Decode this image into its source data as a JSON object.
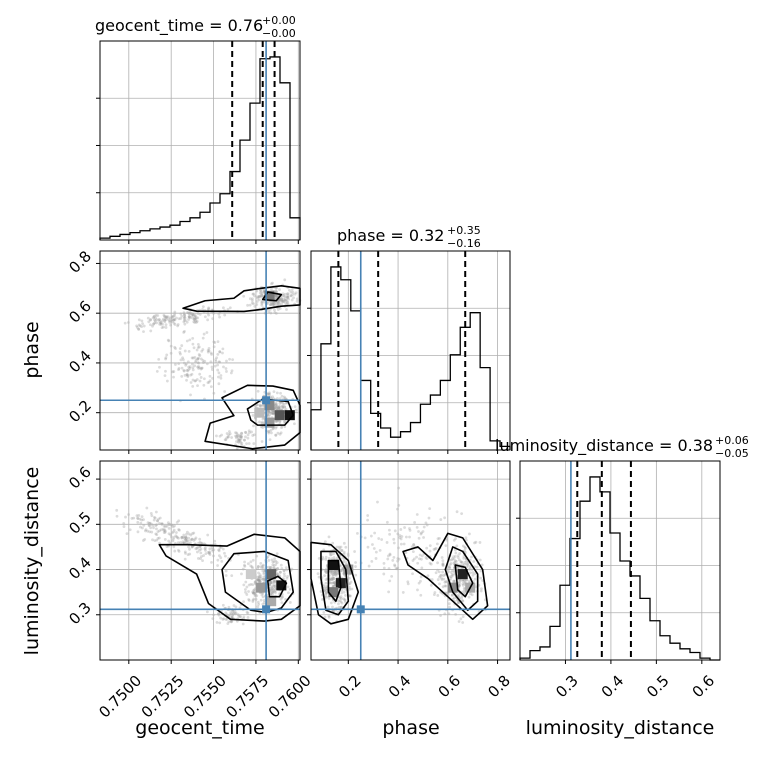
{
  "colors": {
    "truth": "#4682b4",
    "line": "#000000",
    "grid": "#b0b0b0",
    "scatter": "#9a9a9a"
  },
  "chart_data": {
    "type": "corner",
    "parameters": [
      "geocent_time",
      "phase",
      "luminosity_distance"
    ],
    "axis_labels": {
      "x": [
        "geocent_time",
        "phase",
        "luminosity_distance"
      ],
      "y": [
        "phase",
        "luminosity_distance"
      ]
    },
    "ranges": {
      "geocent_time": [
        0.7483,
        0.7601
      ],
      "phase": [
        0.05,
        0.85
      ],
      "luminosity_distance": [
        0.2,
        0.64
      ]
    },
    "ticks": {
      "geocent_time": {
        "values": [
          0.75,
          0.7525,
          0.755,
          0.7575,
          0.76
        ],
        "labels": [
          "0.7500",
          "0.7525",
          "0.7550",
          "0.7575",
          "0.7600"
        ]
      },
      "phase": {
        "values": [
          0.2,
          0.4,
          0.6,
          0.8
        ],
        "labels": [
          "0.2",
          "0.4",
          "0.6",
          "0.8"
        ]
      },
      "luminosity_distance": {
        "values": [
          0.3,
          0.4,
          0.5,
          0.6
        ],
        "labels": [
          "0.3",
          "0.4",
          "0.5",
          "0.6"
        ]
      }
    },
    "truths": {
      "geocent_time": 0.7581,
      "phase": 0.25,
      "luminosity_distance": 0.312
    },
    "titles": [
      {
        "param": "geocent_time",
        "main": "geocent_time = 0.76",
        "sup": "+0.00",
        "sub": "−0.00"
      },
      {
        "param": "phase",
        "main": "phase = 0.32",
        "sup": "+0.35",
        "sub": "−0.16"
      },
      {
        "param": "luminosity_distance",
        "main": "luminosity_distance = 0.38",
        "sup": "+0.06",
        "sub": "−0.05"
      }
    ],
    "quantiles": {
      "geocent_time": [
        0.7561,
        0.7579,
        0.7586
      ],
      "phase": [
        0.16,
        0.32,
        0.67
      ],
      "luminosity_distance": [
        0.326,
        0.38,
        0.444
      ]
    },
    "histograms": {
      "geocent_time": {
        "edges": [
          0.7483,
          0.74889,
          0.74948,
          0.75007,
          0.75066,
          0.75125,
          0.75184,
          0.75243,
          0.75302,
          0.75361,
          0.7542,
          0.75479,
          0.75538,
          0.75597,
          0.75656,
          0.75715,
          0.75774,
          0.75833,
          0.75892,
          0.75951,
          0.7601
        ],
        "counts": [
          1,
          2,
          3,
          4,
          5,
          6,
          7,
          8,
          10,
          12,
          15,
          20,
          25,
          37,
          54,
          74,
          98,
          99,
          85,
          12
        ]
      },
      "phase": {
        "edges": [
          0.05,
          0.09,
          0.13,
          0.17,
          0.21,
          0.25,
          0.29,
          0.33,
          0.37,
          0.41,
          0.45,
          0.49,
          0.53,
          0.57,
          0.61,
          0.65,
          0.69,
          0.73,
          0.77,
          0.81,
          0.85
        ],
        "counts": [
          22,
          58,
          100,
          93,
          76,
          38,
          20,
          12,
          7,
          10,
          15,
          25,
          30,
          38,
          52,
          67,
          75,
          45,
          5,
          2
        ]
      },
      "luminosity_distance": {
        "edges": [
          0.2,
          0.222,
          0.244,
          0.266,
          0.288,
          0.31,
          0.332,
          0.354,
          0.376,
          0.398,
          0.42,
          0.442,
          0.464,
          0.486,
          0.508,
          0.53,
          0.552,
          0.574,
          0.596,
          0.618,
          0.64
        ],
        "counts": [
          1,
          5,
          7,
          18,
          40,
          65,
          85,
          98,
          90,
          68,
          53,
          45,
          33,
          21,
          13,
          9,
          6,
          4,
          1,
          0
        ]
      }
    },
    "contours_2d": [
      {
        "x": "geocent_time",
        "y": "phase",
        "levels": [
          [
            [
              0.7568,
              0.607
            ],
            [
              0.7578,
              0.615
            ],
            [
              0.759,
              0.628
            ],
            [
              0.7601,
              0.633
            ],
            [
              0.7601,
              0.7
            ],
            [
              0.759,
              0.71
            ],
            [
              0.7578,
              0.7
            ],
            [
              0.7568,
              0.69
            ],
            [
              0.7562,
              0.66
            ],
            [
              0.7545,
              0.65
            ],
            [
              0.7532,
              0.62
            ],
            [
              0.754,
              0.608
            ]
          ],
          [
            [
              0.7573,
              0.055
            ],
            [
              0.7545,
              0.085
            ],
            [
              0.7548,
              0.158
            ],
            [
              0.7562,
              0.188
            ],
            [
              0.7555,
              0.26
            ],
            [
              0.757,
              0.31
            ],
            [
              0.7585,
              0.307
            ],
            [
              0.7597,
              0.29
            ],
            [
              0.7601,
              0.23
            ],
            [
              0.7601,
              0.12
            ],
            [
              0.7592,
              0.07
            ]
          ],
          [
            [
              0.7576,
              0.15
            ],
            [
              0.7592,
              0.15
            ],
            [
              0.7597,
              0.19
            ],
            [
              0.7594,
              0.245
            ],
            [
              0.7579,
              0.255
            ],
            [
              0.757,
              0.215
            ],
            [
              0.7572,
              0.17
            ]
          ],
          [
            [
              0.7579,
              0.655
            ],
            [
              0.7587,
              0.65
            ],
            [
              0.759,
              0.675
            ],
            [
              0.7582,
              0.685
            ]
          ]
        ]
      },
      {
        "x": "geocent_time",
        "y": "luminosity_distance",
        "levels": [
          [
            [
              0.758,
              0.286
            ],
            [
              0.756,
              0.29
            ],
            [
              0.7547,
              0.325
            ],
            [
              0.754,
              0.39
            ],
            [
              0.7522,
              0.43
            ],
            [
              0.7518,
              0.455
            ],
            [
              0.7535,
              0.455
            ],
            [
              0.7558,
              0.452
            ],
            [
              0.7574,
              0.478
            ],
            [
              0.7592,
              0.47
            ],
            [
              0.7601,
              0.44
            ],
            [
              0.7601,
              0.32
            ],
            [
              0.759,
              0.29
            ]
          ],
          [
            [
              0.7581,
              0.305
            ],
            [
              0.7572,
              0.31
            ],
            [
              0.7557,
              0.35
            ],
            [
              0.7555,
              0.4
            ],
            [
              0.7562,
              0.435
            ],
            [
              0.758,
              0.44
            ],
            [
              0.7594,
              0.42
            ],
            [
              0.7597,
              0.35
            ],
            [
              0.759,
              0.315
            ]
          ],
          [
            [
              0.7583,
              0.34
            ],
            [
              0.7589,
              0.34
            ],
            [
              0.7593,
              0.37
            ],
            [
              0.7588,
              0.385
            ],
            [
              0.7582,
              0.375
            ]
          ]
        ]
      },
      {
        "x": "phase",
        "y": "luminosity_distance",
        "levels": [
          [
            [
              0.05,
              0.46
            ],
            [
              0.13,
              0.455
            ],
            [
              0.2,
              0.42
            ],
            [
              0.24,
              0.35
            ],
            [
              0.2,
              0.29
            ],
            [
              0.13,
              0.28
            ],
            [
              0.08,
              0.3
            ],
            [
              0.05,
              0.38
            ]
          ],
          [
            [
              0.09,
              0.44
            ],
            [
              0.15,
              0.44
            ],
            [
              0.19,
              0.4
            ],
            [
              0.2,
              0.33
            ],
            [
              0.16,
              0.3
            ],
            [
              0.11,
              0.31
            ],
            [
              0.09,
              0.38
            ]
          ],
          [
            [
              0.12,
              0.42
            ],
            [
              0.16,
              0.42
            ],
            [
              0.17,
              0.36
            ],
            [
              0.15,
              0.33
            ],
            [
              0.12,
              0.35
            ]
          ],
          [
            [
              0.6,
              0.48
            ],
            [
              0.66,
              0.47
            ],
            [
              0.74,
              0.4
            ],
            [
              0.76,
              0.32
            ],
            [
              0.7,
              0.29
            ],
            [
              0.62,
              0.33
            ],
            [
              0.52,
              0.38
            ],
            [
              0.44,
              0.41
            ],
            [
              0.42,
              0.44
            ],
            [
              0.48,
              0.45
            ],
            [
              0.54,
              0.42
            ],
            [
              0.57,
              0.45
            ]
          ],
          [
            [
              0.62,
              0.45
            ],
            [
              0.66,
              0.44
            ],
            [
              0.72,
              0.39
            ],
            [
              0.72,
              0.33
            ],
            [
              0.68,
              0.31
            ],
            [
              0.62,
              0.35
            ],
            [
              0.59,
              0.4
            ]
          ],
          [
            [
              0.63,
              0.41
            ],
            [
              0.67,
              0.405
            ],
            [
              0.7,
              0.37
            ],
            [
              0.67,
              0.34
            ],
            [
              0.64,
              0.355
            ]
          ]
        ]
      }
    ],
    "scatter_cloud": {
      "geocent_time_phase": {
        "x_range": [
          0.7483,
          0.7601
        ],
        "y_range": [
          0.05,
          0.85
        ]
      },
      "geocent_time_luminosity_distance": {
        "x_range": [
          0.7483,
          0.7601
        ],
        "y_range": [
          0.2,
          0.64
        ]
      },
      "phase_luminosity_distance": {
        "x_range": [
          0.05,
          0.85
        ],
        "y_range": [
          0.2,
          0.64
        ]
      }
    },
    "grid": true
  }
}
